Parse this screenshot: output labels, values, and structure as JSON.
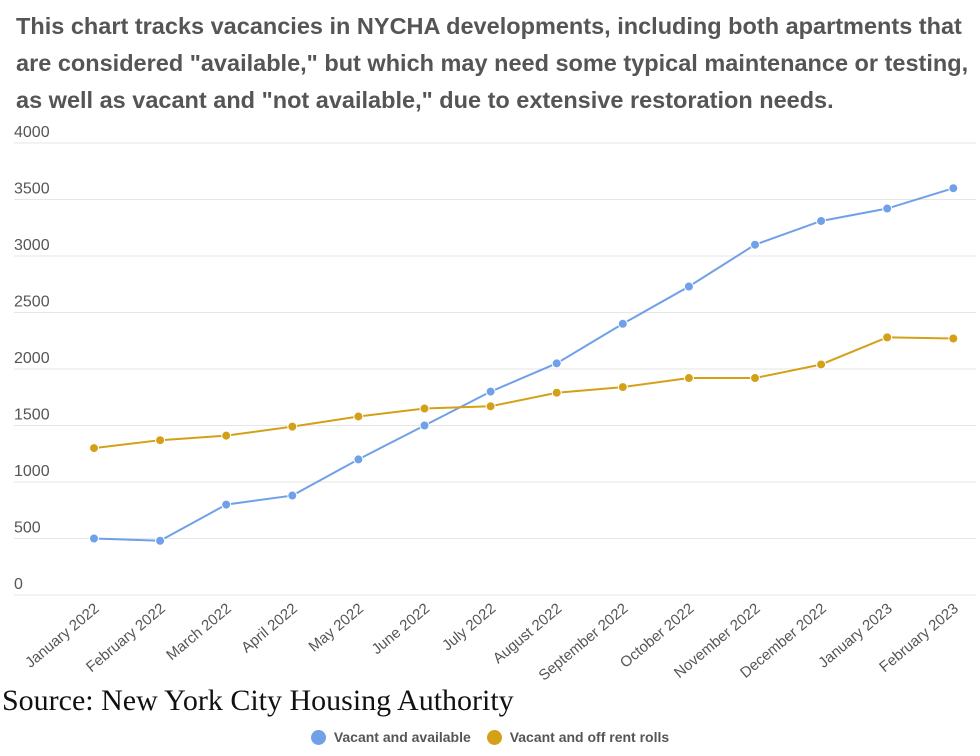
{
  "chart_data": {
    "type": "line",
    "title": "This chart tracks vacancies in NYCHA developments, including both apartments that are considered \"available,\" but which may need some typical maintenance or testing, as well as vacant and \"not available,\" due to extensive restoration needs.",
    "source": "Source: New York City Housing Authority",
    "xlabel": "",
    "ylabel": "",
    "ylim": [
      0,
      4000
    ],
    "yticks": [
      "4000",
      "3500",
      "3000",
      "2500",
      "2000",
      "1500",
      "1000",
      "500",
      "0"
    ],
    "grid": true,
    "legend_position": "bottom",
    "categories": [
      "January 2022",
      "February 2022",
      "March 2022",
      "April 2022",
      "May 2022",
      "June 2022",
      "July 2022",
      "August 2022",
      "September 2022",
      "October 2022",
      "November 2022",
      "December 2022",
      "January 2023",
      "February 2023"
    ],
    "series": [
      {
        "name": "Vacant and available",
        "color": "#6fa0e8",
        "values": [
          500,
          480,
          800,
          880,
          1200,
          1500,
          1800,
          2050,
          2400,
          2730,
          3100,
          3310,
          3420,
          3600
        ]
      },
      {
        "name": "Vacant and off rent rolls",
        "color": "#d4a018",
        "values": [
          1300,
          1370,
          1410,
          1490,
          1580,
          1650,
          1670,
          1790,
          1840,
          1920,
          1920,
          2040,
          2280,
          2270
        ]
      }
    ]
  }
}
